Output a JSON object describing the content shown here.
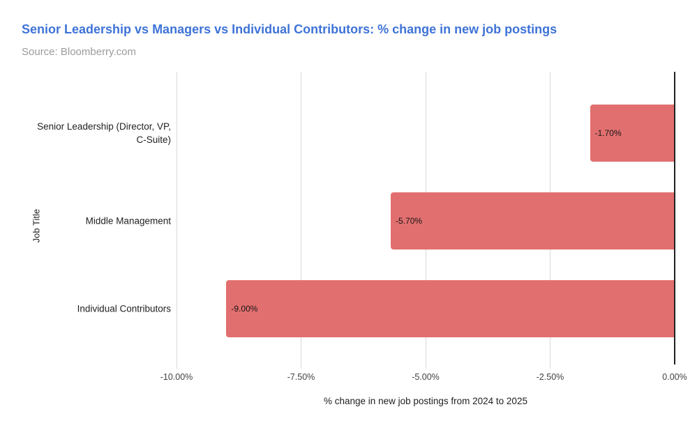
{
  "header": {
    "title": "Senior Leadership vs Managers vs Individual Contributors: % change in new job postings",
    "subtitle": "Source: Bloomberry.com"
  },
  "colors": {
    "title_blue": "#3e73d7",
    "subtitle_gray": "#9b9b9b",
    "bar_red": "#e26f6f",
    "gridline_gray": "#d9d9d9",
    "axis_black": "#212121",
    "label_text": "#212121"
  },
  "chart_data": {
    "type": "bar",
    "orientation": "horizontal",
    "title": "Senior Leadership vs Managers vs Individual Contributors: % change in new job postings",
    "subtitle": "Source: Bloomberry.com",
    "categories": [
      "Senior Leadership (Director, VP, C-Suite)",
      "Middle Management",
      "Individual Contributors"
    ],
    "values": [
      -1.7,
      -5.7,
      -9.0
    ],
    "value_labels": [
      "-1.70%",
      "-5.70%",
      "-9.00%"
    ],
    "xlabel": "% change in new job postings from 2024 to 2025",
    "ylabel": "Job Title",
    "xlim": [
      -10,
      0
    ],
    "x_ticks": [
      -10,
      -7.5,
      -5,
      -2.5,
      0
    ],
    "x_tick_labels": [
      "-10.00%",
      "-7.50%",
      "-5.00%",
      "-2.50%",
      "0.00%"
    ],
    "grid": "vertical-gridlines-on",
    "legend": "none",
    "bar_color": "#e26f6f"
  }
}
